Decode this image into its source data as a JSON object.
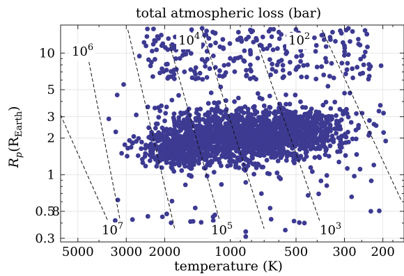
{
  "chart_data": {
    "type": "scatter",
    "title": "total atmospheric loss (bar)",
    "xlabel": "temperature (K)",
    "ylabel_main": "R",
    "ylabel_sub": "p",
    "ylabel_paren": "(R",
    "ylabel_paren_sub": "Earth",
    "ylabel_close": ")",
    "x_scale": "log-reversed",
    "y_scale": "log",
    "xlim": [
      6000,
      160
    ],
    "ylim": [
      0.28,
      17
    ],
    "grid": true,
    "x_ticks": [
      {
        "value": 5000,
        "label": "5000"
      },
      {
        "value": 3000,
        "label": "3000"
      },
      {
        "value": 2000,
        "label": "2000"
      },
      {
        "value": 1000,
        "label": "1000"
      },
      {
        "value": 500,
        "label": "500"
      },
      {
        "value": 300,
        "label": "300"
      },
      {
        "value": 200,
        "label": "200"
      }
    ],
    "y_ticks": [
      {
        "value": 10,
        "label": "10"
      },
      {
        "value": 5,
        "label": "5"
      },
      {
        "value": 3,
        "label": "3"
      },
      {
        "value": 2,
        "label": "2"
      },
      {
        "value": 1,
        "label": "1"
      },
      {
        "value": 0.5,
        "label": "0.5"
      },
      {
        "value": 0.3,
        "label": "0.3"
      }
    ],
    "y_tick_overlay": {
      "value": 0.5,
      "label": "8"
    },
    "contours": [
      {
        "label_base": "10",
        "label_exp": "6",
        "position": "top",
        "line": [
          [
            4600,
            11.5
          ],
          [
            3200,
            0.42
          ]
        ]
      },
      {
        "label_base": "10",
        "label_exp": "4",
        "position": "top",
        "line": [
          [
            1900,
            11.8
          ],
          [
            1120,
            0.42
          ]
        ]
      },
      {
        "label_base": "10",
        "label_exp": "2",
        "position": "top",
        "line": [
          [
            750,
            11.8
          ],
          [
            390,
            0.42
          ]
        ]
      },
      {
        "label_base": "10",
        "label_exp": "7",
        "position": "bottom",
        "line": [
          [
            6000,
            3.1
          ],
          [
            3650,
            0.42
          ]
        ]
      },
      {
        "label_base": "10",
        "label_exp": "5",
        "position": "bottom",
        "line": [
          [
            2950,
            15.5
          ],
          [
            1800,
            0.36
          ]
        ]
      },
      {
        "label_base": "10",
        "label_exp": "3",
        "position": "bottom",
        "line": [
          [
            1350,
            15.5
          ],
          [
            700,
            0.36
          ]
        ]
      },
      {
        "label_base": "",
        "label_exp": "",
        "position": "none",
        "line": [
          [
            380,
            15.5
          ],
          [
            165,
            0.62
          ]
        ]
      }
    ],
    "cluster": {
      "color": "#3d3a92",
      "core": {
        "n": 1500,
        "x_center": 900,
        "x_spread_dex": 0.17,
        "y_center": 2.1,
        "y_spread_dex": 0.11
      },
      "hot_wing": {
        "n": 300,
        "x_center": 1700,
        "x_spread_dex": 0.09,
        "y_center": 1.6,
        "y_spread_dex": 0.08
      },
      "cool_wing": {
        "n": 350,
        "x_center": 450,
        "x_spread_dex": 0.12,
        "y_center": 2.3,
        "y_spread_dex": 0.1
      },
      "giants": {
        "n": 230,
        "x_min": 2500,
        "x_max": 230,
        "y_min": 6,
        "y_max": 16
      },
      "outliers": {
        "n": 90,
        "x_min": 3400,
        "x_max": 200,
        "y_min": 0.4,
        "y_max": 16
      },
      "points_explicit": [
        {
          "x": 2700,
          "y": 3.1
        },
        {
          "x": 3150,
          "y": 1.5
        },
        {
          "x": 2050,
          "y": 0.45
        },
        {
          "x": 1200,
          "y": 0.45
        },
        {
          "x": 850,
          "y": 0.34
        },
        {
          "x": 850,
          "y": 0.31
        },
        {
          "x": 560,
          "y": 0.35
        },
        {
          "x": 650,
          "y": 0.43
        },
        {
          "x": 230,
          "y": 2.2
        },
        {
          "x": 220,
          "y": 1.2
        },
        {
          "x": 2400,
          "y": 15.8
        },
        {
          "x": 2250,
          "y": 15.8
        },
        {
          "x": 330,
          "y": 12.5
        },
        {
          "x": 300,
          "y": 11.5
        }
      ]
    }
  }
}
